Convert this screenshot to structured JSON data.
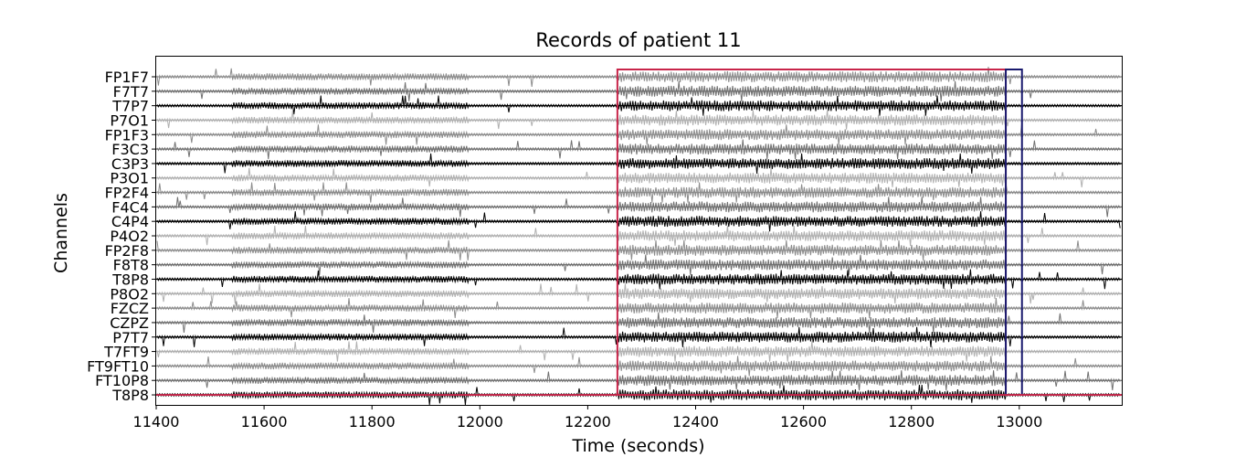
{
  "chart_data": {
    "type": "line",
    "title": "Records of patient 11",
    "xlabel": "Time (seconds)",
    "ylabel": "Channels",
    "xlim": [
      11400,
      13190
    ],
    "xticks": [
      11400,
      11600,
      11800,
      12000,
      12200,
      12400,
      12600,
      12800,
      13000
    ],
    "channels": [
      {
        "name": "FP1F7",
        "color": "#8c8c8c"
      },
      {
        "name": "F7T7",
        "color": "#707070"
      },
      {
        "name": "T7P7",
        "color": "#000000"
      },
      {
        "name": "P7O1",
        "color": "#b0b0b0"
      },
      {
        "name": "FP1F3",
        "color": "#8c8c8c"
      },
      {
        "name": "F3C3",
        "color": "#707070"
      },
      {
        "name": "C3P3",
        "color": "#000000"
      },
      {
        "name": "P3O1",
        "color": "#b0b0b0"
      },
      {
        "name": "FP2F4",
        "color": "#8c8c8c"
      },
      {
        "name": "F4C4",
        "color": "#707070"
      },
      {
        "name": "C4P4",
        "color": "#000000"
      },
      {
        "name": "P4O2",
        "color": "#b0b0b0"
      },
      {
        "name": "FP2F8",
        "color": "#8c8c8c"
      },
      {
        "name": "F8T8",
        "color": "#707070"
      },
      {
        "name": "T8P8",
        "color": "#000000"
      },
      {
        "name": "P8O2",
        "color": "#b0b0b0"
      },
      {
        "name": "FZCZ",
        "color": "#8c8c8c"
      },
      {
        "name": "CZPZ",
        "color": "#707070"
      },
      {
        "name": "P7T7",
        "color": "#000000"
      },
      {
        "name": "T7FT9",
        "color": "#b0b0b0"
      },
      {
        "name": "FT9FT10",
        "color": "#8c8c8c"
      },
      {
        "name": "FT10P8",
        "color": "#707070"
      },
      {
        "name": "T8P8",
        "color": "#000000"
      }
    ],
    "activity_segments": [
      {
        "start": 11540,
        "end": 11980,
        "level": 0.55
      },
      {
        "start": 12255,
        "end": 12975,
        "level": 1.0
      }
    ],
    "annotations": [
      {
        "type": "rectangle",
        "x_start": 12255,
        "x_end": 12975,
        "color": "#c8254a"
      },
      {
        "type": "rectangle",
        "x_start": 12975,
        "x_end": 13005,
        "color": "#1a1a6e"
      }
    ],
    "grid": false,
    "legend": "none"
  }
}
